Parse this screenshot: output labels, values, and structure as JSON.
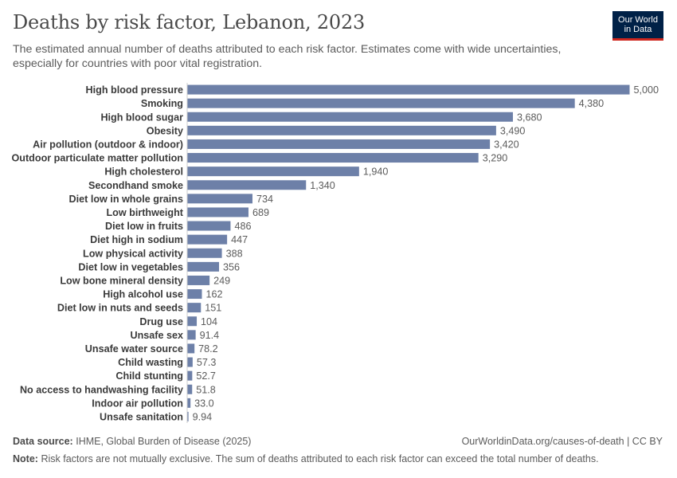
{
  "header": {
    "title": "Deaths by risk factor, Lebanon, 2023",
    "subtitle": "The estimated annual number of deaths attributed to each risk factor. Estimates come with wide uncertainties, especially for countries with poor vital registration."
  },
  "logo": {
    "line1": "Our World",
    "line2": "in Data"
  },
  "footer": {
    "source_label": "Data source:",
    "source_text": "IHME, Global Burden of Disease (2025)",
    "url": "OurWorldinData.org/causes-of-death | CC BY",
    "note_label": "Note:",
    "note_text": "Risk factors are not mutually exclusive. The sum of deaths attributed to each risk factor can exceed the total number of deaths."
  },
  "colors": {
    "bar": "#6d80a8",
    "label": "#3a3a3a",
    "value": "#5b5b5b",
    "axis": "#cccccc"
  },
  "chart_data": {
    "type": "bar",
    "orientation": "horizontal",
    "title": "Deaths by risk factor, Lebanon, 2023",
    "categories": [
      "High blood pressure",
      "Smoking",
      "High blood sugar",
      "Obesity",
      "Air pollution (outdoor & indoor)",
      "Outdoor particulate matter pollution",
      "High cholesterol",
      "Secondhand smoke",
      "Diet low in whole grains",
      "Low birthweight",
      "Diet low in fruits",
      "Diet high in sodium",
      "Low physical activity",
      "Diet low in vegetables",
      "Low bone mineral density",
      "High alcohol use",
      "Diet low in nuts and seeds",
      "Drug use",
      "Unsafe sex",
      "Unsafe water source",
      "Child wasting",
      "Child stunting",
      "No access to handwashing facility",
      "Indoor air pollution",
      "Unsafe sanitation"
    ],
    "values": [
      5000,
      4380,
      3680,
      3490,
      3420,
      3290,
      1940,
      1340,
      734,
      689,
      486,
      447,
      388,
      356,
      249,
      162,
      151,
      104,
      91.4,
      78.2,
      57.3,
      52.7,
      51.8,
      33.0,
      9.94
    ],
    "value_labels": [
      "5,000",
      "4,380",
      "3,680",
      "3,490",
      "3,420",
      "3,290",
      "1,940",
      "1,340",
      "734",
      "689",
      "486",
      "447",
      "388",
      "356",
      "249",
      "162",
      "151",
      "104",
      "91.4",
      "78.2",
      "57.3",
      "52.7",
      "51.8",
      "33.0",
      "9.94"
    ],
    "xlim": [
      0,
      5000
    ],
    "grid": false,
    "legend": "none"
  }
}
